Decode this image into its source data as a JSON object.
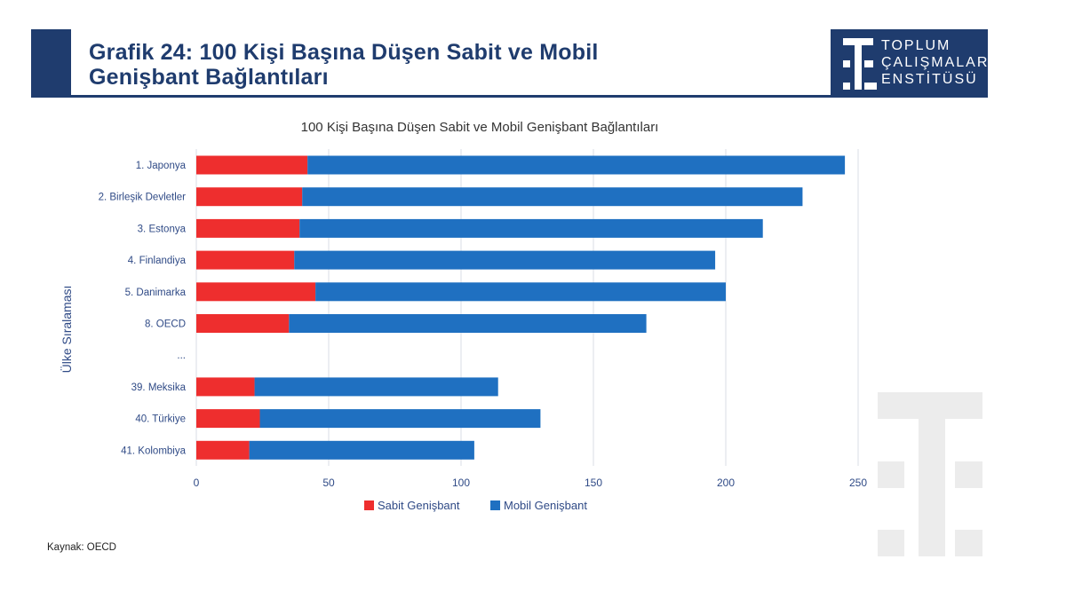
{
  "header": {
    "title_line1": "Grafik 24: 100 Kişi Başına Düşen Sabit ve Mobil",
    "title_line2": "Genişbant Bağlantıları"
  },
  "logo": {
    "line1": "TOPLUM",
    "line2": "ÇALIŞMALARI",
    "line3": "ENSTİTÜSÜ"
  },
  "source": "Kaynak: OECD",
  "chart_data": {
    "type": "bar",
    "orientation": "horizontal",
    "stacked": true,
    "title": "100 Kişi Başına Düşen Sabit ve Mobil Genişbant Bağlantıları",
    "xlabel": "",
    "ylabel": "Ülke Sıralaması",
    "xlim": [
      0,
      250
    ],
    "xticks": [
      0,
      50,
      100,
      150,
      200,
      250
    ],
    "grid": "vertical",
    "legend": "bottom",
    "categories": [
      "1. Japonya",
      "2. Birleşik Devletler",
      "3. Estonya",
      "4. Finlandiya",
      "5. Danimarka",
      "8. OECD",
      "...",
      "39. Meksika",
      "40. Türkiye",
      "41. Kolombiya"
    ],
    "series": [
      {
        "name": "Sabit Genişbant",
        "color": "#ee2e2e",
        "values": [
          42,
          40,
          39,
          37,
          45,
          35,
          null,
          22,
          24,
          20
        ]
      },
      {
        "name": "Mobil Genişbant",
        "color": "#1f70c1",
        "values": [
          203,
          189,
          175,
          159,
          155,
          135,
          null,
          92,
          106,
          85
        ]
      }
    ]
  }
}
